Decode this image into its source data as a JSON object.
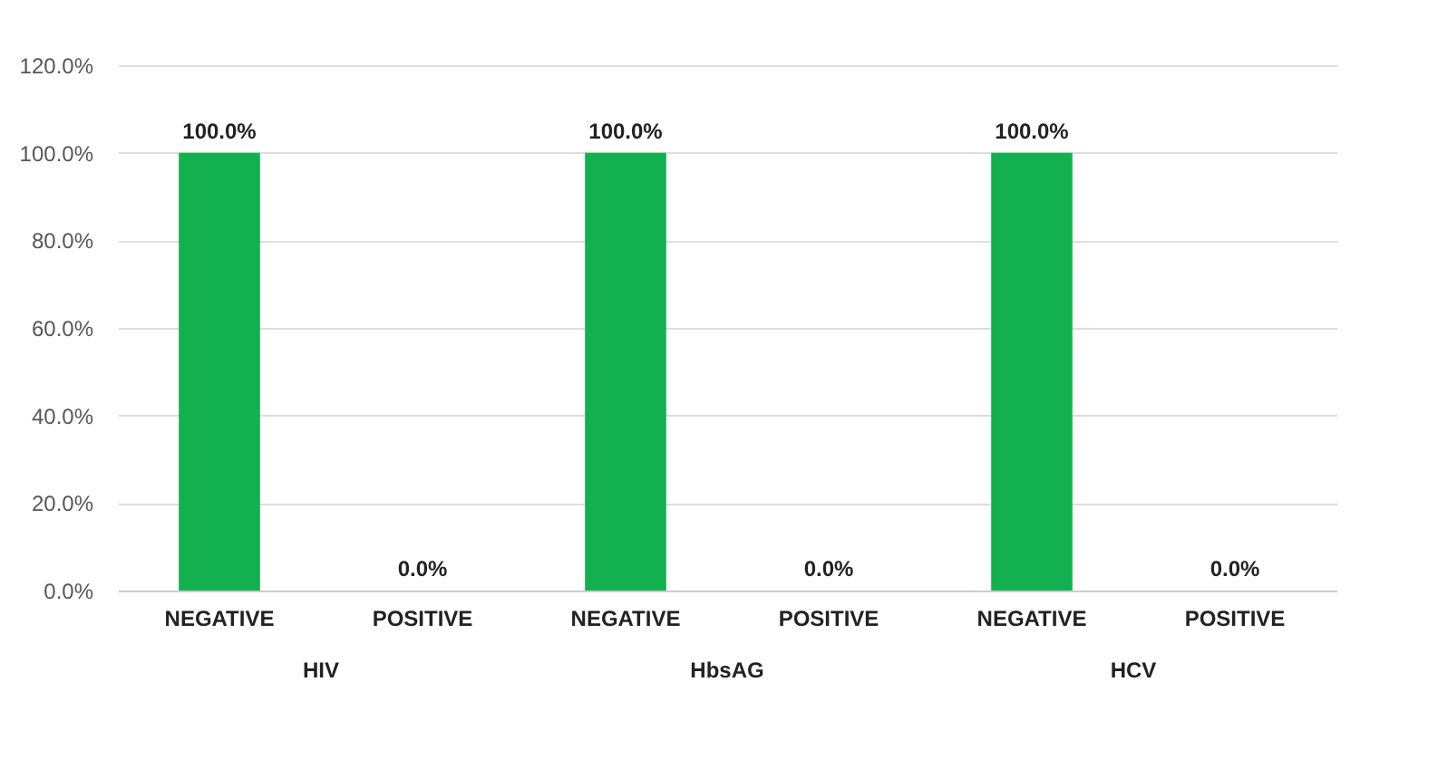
{
  "chart_data": {
    "type": "bar",
    "categories": [
      "NEGATIVE",
      "POSITIVE",
      "NEGATIVE",
      "POSITIVE",
      "NEGATIVE",
      "POSITIVE"
    ],
    "values": [
      100,
      0,
      100,
      0,
      100,
      0
    ],
    "value_labels": [
      "100.0%",
      "0.0%",
      "100.0%",
      "0.0%",
      "100.0%",
      "0.0%"
    ],
    "color": "#13b050",
    "ylim": [
      0,
      120
    ],
    "yticks": [
      {
        "value": 0,
        "label": "0.0%"
      },
      {
        "value": 20,
        "label": "20.0%"
      },
      {
        "value": 40,
        "label": "40.0%"
      },
      {
        "value": 60,
        "label": "60.0%"
      },
      {
        "value": 80,
        "label": "80.0%"
      },
      {
        "value": 100,
        "label": "100.0%"
      },
      {
        "value": 120,
        "label": "120.0%"
      }
    ],
    "annotations": [
      "HIV",
      "HbsAG",
      "HCV"
    ],
    "grid": "y"
  }
}
